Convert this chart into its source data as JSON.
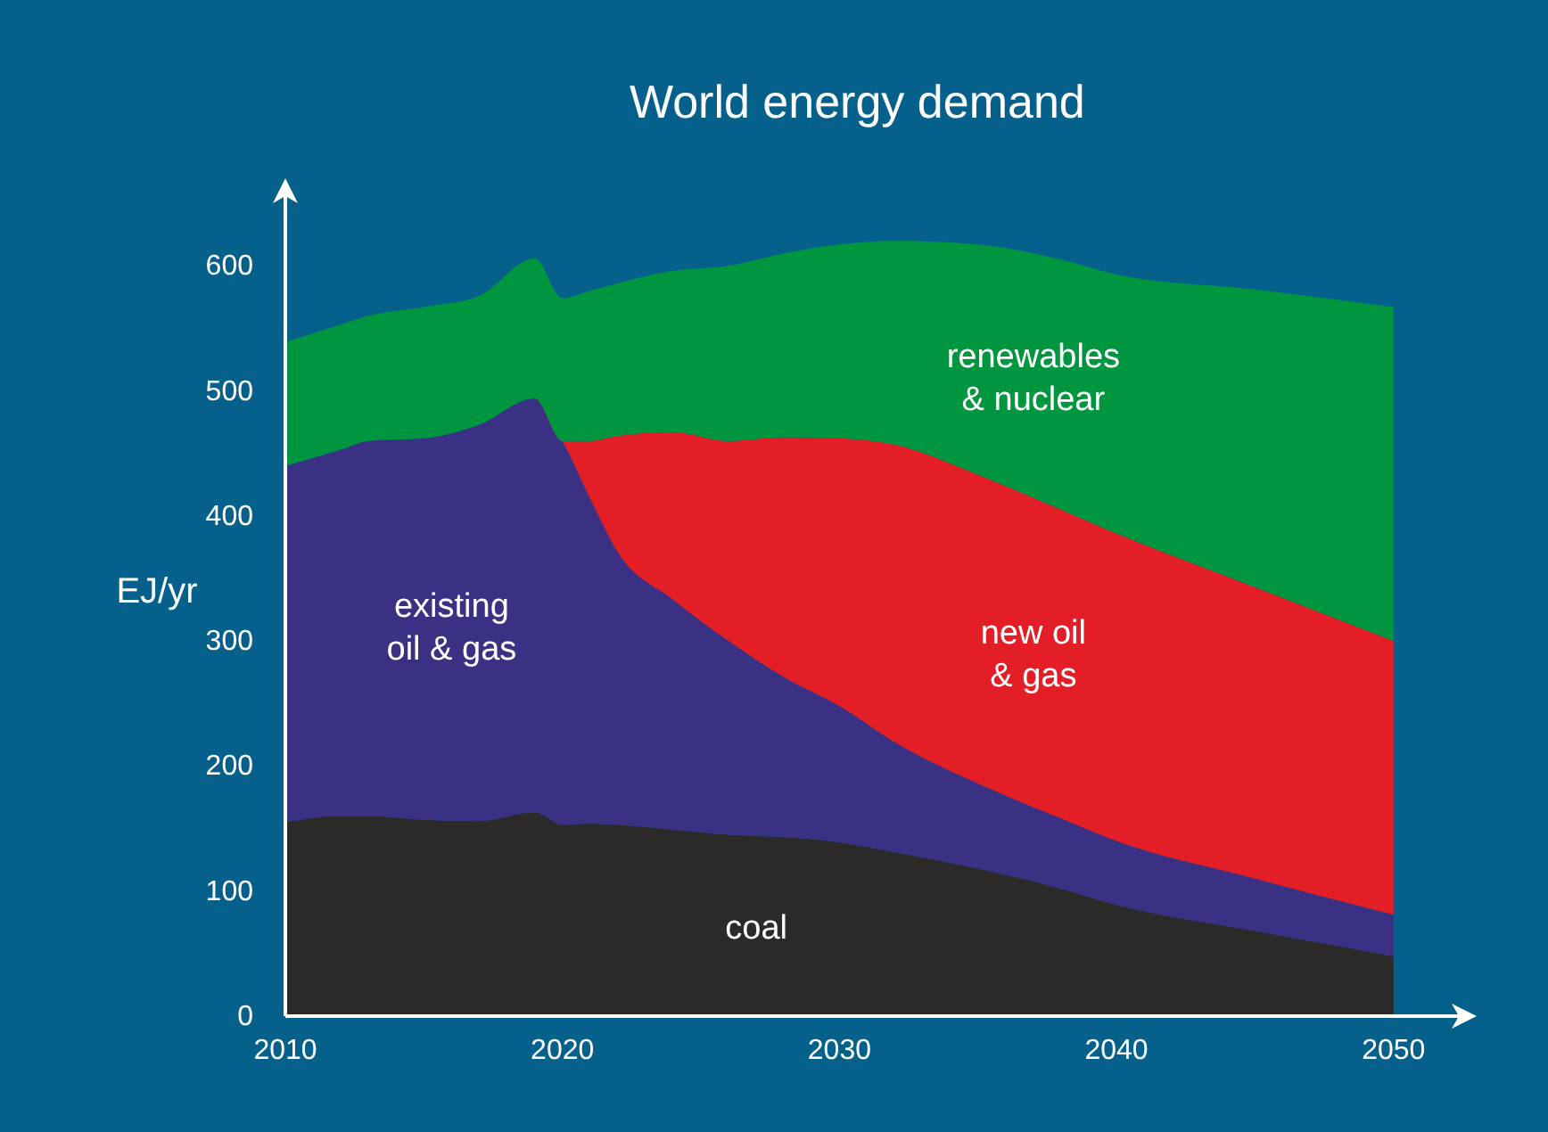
{
  "chart_data": {
    "type": "area",
    "stacked": true,
    "title": "World energy demand",
    "ylabel": "EJ/yr",
    "x": [
      2010,
      2012,
      2013,
      2015,
      2017,
      2019,
      2020,
      2021,
      2022,
      2024,
      2026,
      2028,
      2030,
      2032,
      2035,
      2038,
      2040,
      2045,
      2050
    ],
    "series": [
      {
        "name": "coal",
        "color": "#2b2a29",
        "values": [
          155,
          160,
          160,
          157,
          156,
          163,
          153,
          154,
          153,
          149,
          145,
          143,
          139,
          131,
          118,
          102,
          89,
          68,
          48
        ]
      },
      {
        "name": "existing\noil & gas",
        "color": "#3a3185",
        "values": [
          285,
          293,
          300,
          305,
          317,
          331,
          307,
          260,
          218,
          184,
          155,
          128,
          109,
          88,
          68,
          56,
          51,
          42,
          33
        ]
      },
      {
        "name": "new oil\n& gas",
        "color": "#e31e26",
        "values": [
          0,
          0,
          0,
          0,
          0,
          0,
          0,
          46,
          93,
          134,
          160,
          192,
          214,
          238,
          247,
          247,
          246,
          233,
          219
        ]
      },
      {
        "name": "renewables\n& nuclear",
        "color": "#00963f",
        "values": [
          99,
          100,
          100,
          105,
          103,
          112,
          114,
          120,
          122,
          129,
          140,
          147,
          155,
          163,
          184,
          200,
          207,
          238,
          267
        ]
      }
    ],
    "xlim": [
      2010,
      2053
    ],
    "ylim": [
      0,
      670
    ],
    "xticks": [
      2010,
      2020,
      2030,
      2040,
      2050
    ],
    "yticks": [
      0,
      100,
      200,
      300,
      400,
      500,
      600
    ]
  }
}
